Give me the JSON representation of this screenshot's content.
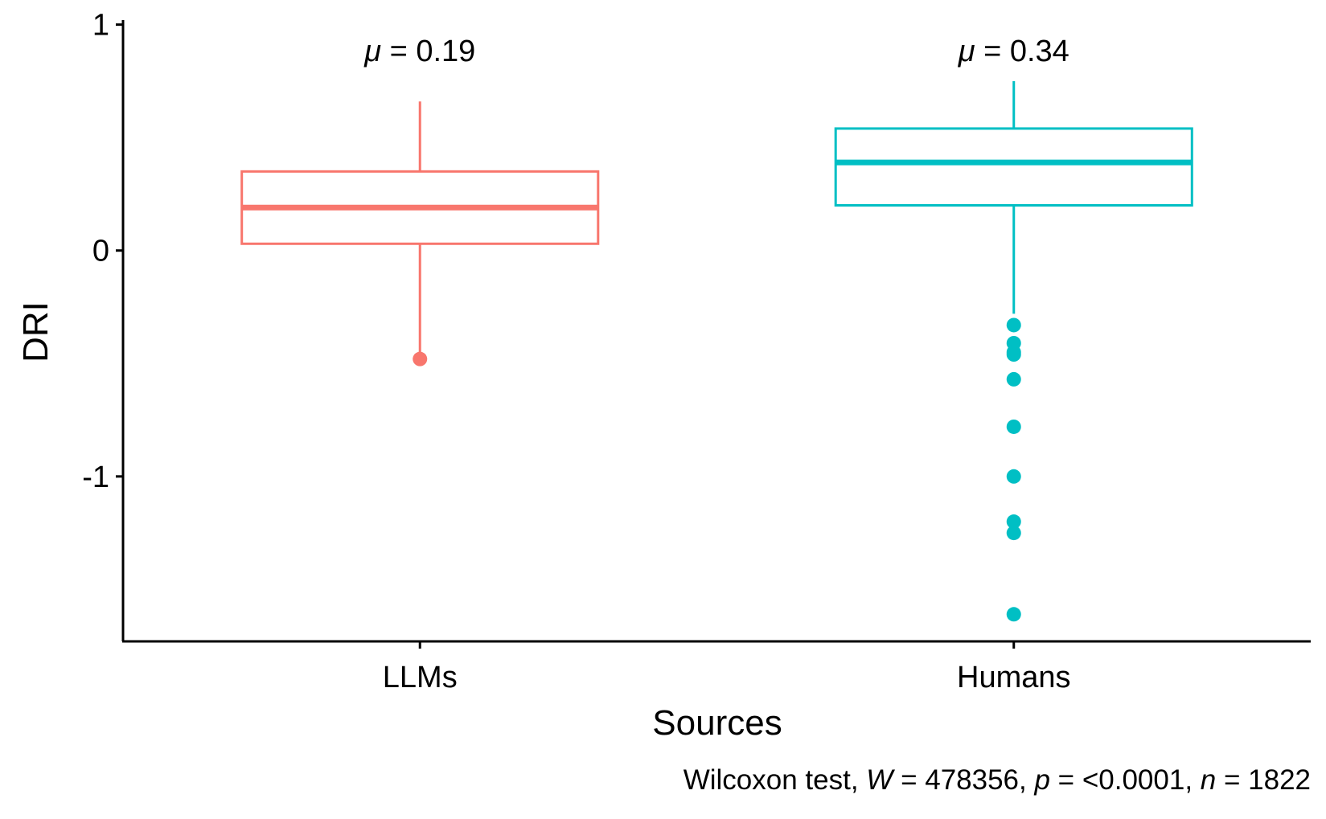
{
  "chart_data": {
    "type": "box",
    "xlabel": "Sources",
    "ylabel": "DRI",
    "categories": [
      "LLMs",
      "Humans"
    ],
    "ylim": [
      -1.73,
      1.02
    ],
    "y_ticks": [
      1,
      0,
      -1
    ],
    "y_tick_labels": [
      "1",
      "0",
      "-1"
    ],
    "grid": false,
    "legend": "none",
    "boxes": [
      {
        "name": "LLMs",
        "color": "#F8766D",
        "whisker_low": -0.47,
        "q1": 0.03,
        "median": 0.19,
        "q3": 0.35,
        "whisker_high": 0.66,
        "mean": 0.19,
        "mean_label": "0.19",
        "outliers": [
          -0.48
        ]
      },
      {
        "name": "Humans",
        "color": "#00BFC4",
        "whisker_low": -0.28,
        "q1": 0.2,
        "median": 0.39,
        "q3": 0.54,
        "whisker_high": 0.75,
        "mean": 0.34,
        "mean_label": "0.34",
        "outliers": [
          -0.33,
          -0.41,
          -0.45,
          -0.46,
          -0.57,
          -0.78,
          -1.0,
          -1.2,
          -1.25,
          -1.61
        ]
      }
    ],
    "mean_prefix": "μ",
    "mean_equals": " = ",
    "caption": {
      "test": "Wilcoxon test, ",
      "w_sym": "W",
      "w_val": " = 478356, ",
      "p_sym": "p",
      "p_val": " = <0.0001, ",
      "n_sym": "n",
      "n_val": " = 1822"
    }
  }
}
